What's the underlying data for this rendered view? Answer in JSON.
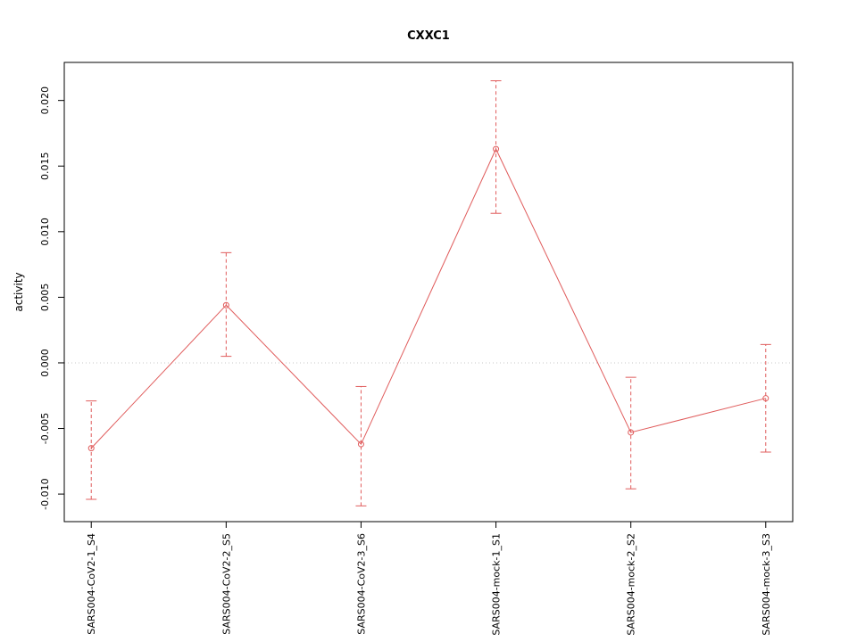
{
  "chart_data": {
    "type": "line",
    "title": "CXXC1",
    "xlabel": "",
    "ylabel": "activity",
    "categories": [
      "SARS004-CoV2-1_S4",
      "SARS004-CoV2-2_S5",
      "SARS004-CoV2-3_S6",
      "SARS004-mock-1_S1",
      "SARS004-mock-2_S2",
      "SARS004-mock-3_S3"
    ],
    "values": [
      -0.0065,
      0.0044,
      -0.0062,
      0.0163,
      -0.0053,
      -0.0027
    ],
    "error_low": [
      -0.0104,
      0.0005,
      -0.0109,
      0.0114,
      -0.0096,
      -0.0068
    ],
    "error_high": [
      -0.0029,
      0.0084,
      -0.0018,
      0.0215,
      -0.0011,
      0.0014
    ],
    "yticks": [
      -0.01,
      -0.005,
      0.0,
      0.005,
      0.01,
      0.015,
      0.02
    ],
    "ytick_labels": [
      "-0.010",
      "-0.005",
      "0.000",
      "0.005",
      "0.010",
      "0.015",
      "0.020"
    ],
    "ylim": [
      -0.0121,
      0.0229
    ],
    "series_color": "#e05c5c",
    "grid_color": "#c8c8c8",
    "axis_color": "#000000",
    "marker": "open-circle",
    "grid": "dotted-zero-line",
    "legend": "none",
    "zero_line": 0
  }
}
